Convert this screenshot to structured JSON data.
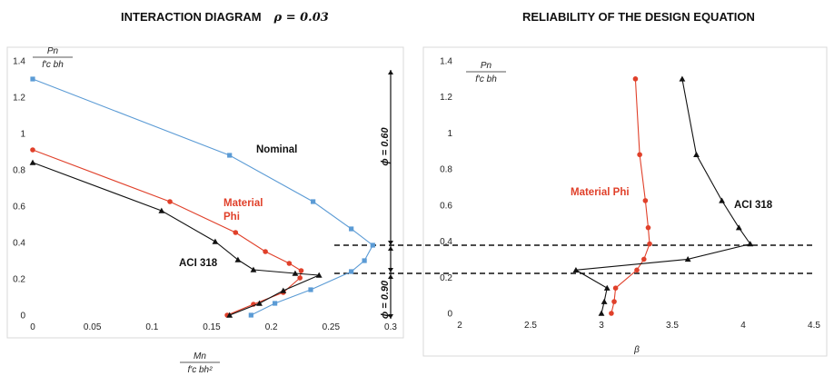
{
  "chart_data": [
    {
      "type": "line",
      "title": "INTERACTION DIAGRAM",
      "title_parameter": "ρ = 0.03",
      "xlabel": {
        "num": "M_n",
        "den": "f'_c bh²"
      },
      "ylabel": {
        "num": "P_n",
        "den": "f'_c bh"
      },
      "xlim": [
        0,
        0.3
      ],
      "ylim": [
        0,
        1.4
      ],
      "xticks": [
        "0",
        "0.05",
        "0.1",
        "0.15",
        "0.2",
        "0.25",
        "0.3"
      ],
      "yticks": [
        "0",
        "0.2",
        "0.4",
        "0.6",
        "0.8",
        "1",
        "1.2",
        "1.4"
      ],
      "series": [
        {
          "name": "Nominal",
          "color": "#5b9bd5",
          "marker": "square",
          "x": [
            0,
            0.165,
            0.235,
            0.267,
            0.285,
            0.278,
            0.267,
            0.233,
            0.203,
            0.183
          ],
          "y": [
            1.3,
            0.88,
            0.625,
            0.475,
            0.385,
            0.3,
            0.24,
            0.14,
            0.065,
            0
          ]
        },
        {
          "name": "Material Phi",
          "color": "#e0402a",
          "marker": "circle",
          "x": [
            0,
            0.115,
            0.17,
            0.195,
            0.215,
            0.225,
            0.224,
            0.21,
            0.185,
            0.163
          ],
          "y": [
            0.91,
            0.625,
            0.455,
            0.35,
            0.285,
            0.245,
            0.205,
            0.125,
            0.06,
            0
          ]
        },
        {
          "name": "ACI 318",
          "color": "#111111",
          "marker": "triangle",
          "x": [
            0,
            0.108,
            0.153,
            0.172,
            0.185,
            0.22,
            0.24,
            0.21,
            0.19,
            0.165
          ],
          "y": [
            0.84,
            0.575,
            0.405,
            0.305,
            0.25,
            0.23,
            0.22,
            0.135,
            0.065,
            0
          ]
        }
      ],
      "annotations": {
        "phi_upper": "ϕ = 0.60",
        "phi_lower": "ϕ = 0.90"
      }
    },
    {
      "type": "line",
      "title": "RELIABILITY OF THE DESIGN EQUATION",
      "xlabel": "β",
      "ylabel": {
        "num": "P_n",
        "den": "f'_c bh"
      },
      "xlim": [
        2,
        4.5
      ],
      "ylim": [
        0,
        1.4
      ],
      "xticks": [
        "2",
        "2.5",
        "3",
        "3.5",
        "4",
        "4.5"
      ],
      "yticks": [
        "0",
        "0.2",
        "0.4",
        "0.6",
        "0.8",
        "1",
        "1.2",
        "1.4"
      ],
      "series": [
        {
          "name": "Material Phi",
          "color": "#e0402a",
          "marker": "circle",
          "x": [
            3.24,
            3.27,
            3.31,
            3.33,
            3.34,
            3.3,
            3.25,
            3.1,
            3.09,
            3.07
          ],
          "y": [
            1.3,
            0.88,
            0.625,
            0.475,
            0.385,
            0.3,
            0.24,
            0.14,
            0.065,
            0
          ]
        },
        {
          "name": "ACI 318",
          "color": "#111111",
          "marker": "triangle",
          "x": [
            3.57,
            3.67,
            3.85,
            3.97,
            4.05,
            3.61,
            2.82,
            3.04,
            3.02,
            3.0
          ],
          "y": [
            1.3,
            0.88,
            0.625,
            0.475,
            0.385,
            0.3,
            0.24,
            0.14,
            0.065,
            0
          ]
        }
      ]
    }
  ],
  "reference_lines": [
    0.385,
    0.23
  ]
}
